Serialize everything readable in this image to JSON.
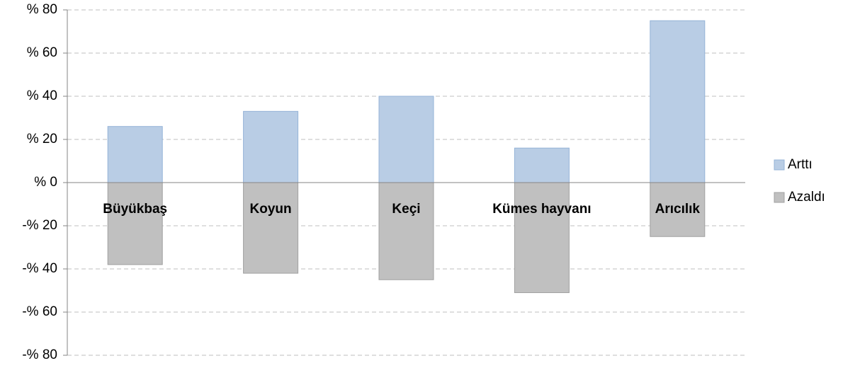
{
  "chart_data": {
    "type": "bar",
    "categories": [
      "Büyükbaş",
      "Koyun",
      "Keçi",
      "Kümes hayvanı",
      "Arıcılık"
    ],
    "series": [
      {
        "name": "Arttı",
        "color": "#b9cde5",
        "values": [
          26,
          33,
          40,
          16,
          75
        ]
      },
      {
        "name": "Azaldı",
        "color": "#c0c0c0",
        "values": [
          -38,
          -42,
          -45,
          -51,
          -25
        ]
      }
    ],
    "ylim": [
      -80,
      80
    ],
    "yticks": [
      {
        "value": -80,
        "label": "-% 80"
      },
      {
        "value": -60,
        "label": "-% 60"
      },
      {
        "value": -40,
        "label": "-% 40"
      },
      {
        "value": -20,
        "label": "-% 20"
      },
      {
        "value": 0,
        "label": "% 0"
      },
      {
        "value": 20,
        "label": "% 20"
      },
      {
        "value": 40,
        "label": "% 40"
      },
      {
        "value": 60,
        "label": "% 60"
      },
      {
        "value": 80,
        "label": "% 80"
      }
    ],
    "grid": true,
    "legend": "right"
  }
}
